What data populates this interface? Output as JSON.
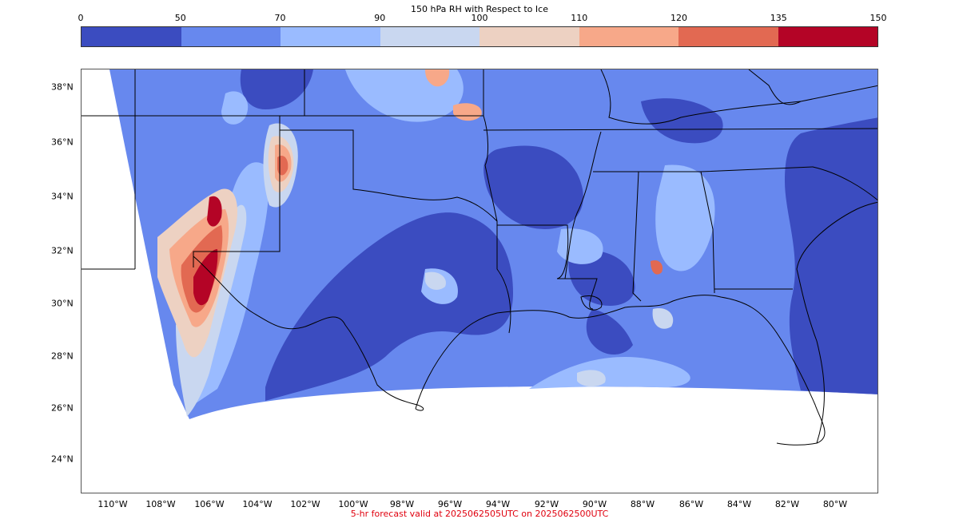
{
  "title": "150 hPa RH with Respect to Ice",
  "colorbar": {
    "tick_labels": [
      "0",
      "50",
      "70",
      "90",
      "100",
      "110",
      "120",
      "135",
      "150"
    ],
    "colors": [
      "#3b4cc0",
      "#6788ee",
      "#9abbff",
      "#c9d7f0",
      "#edd1c2",
      "#f7a889",
      "#e26952",
      "#b40426"
    ]
  },
  "map": {
    "lat_labels": [
      "38°N",
      "36°N",
      "34°N",
      "32°N",
      "30°N",
      "28°N",
      "26°N",
      "24°N"
    ],
    "lon_labels": [
      "110°W",
      "108°W",
      "106°W",
      "104°W",
      "102°W",
      "100°W",
      "98°W",
      "96°W",
      "94°W",
      "92°W",
      "90°W",
      "88°W",
      "86°W",
      "84°W",
      "82°W",
      "80°W"
    ]
  },
  "footer": "5-hr forecast valid at 2025062505UTC on 2025062500UTC"
}
